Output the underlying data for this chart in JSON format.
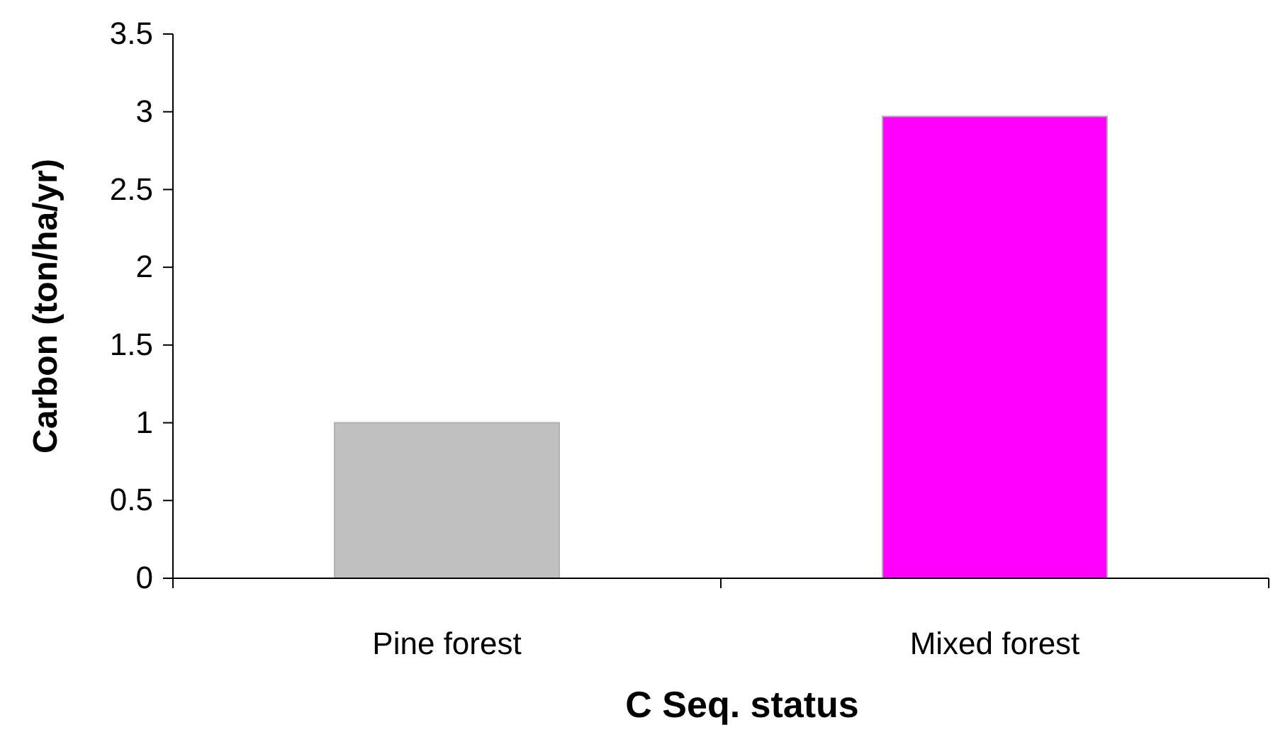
{
  "chart_data": {
    "type": "bar",
    "xlabel": "C Seq. status",
    "ylabel": "Carbon (ton/ha/yr)",
    "categories": [
      "Pine forest",
      "Mixed forest"
    ],
    "values": [
      1.0,
      2.97
    ],
    "colors": [
      "#c0c0c0",
      "#ff00ff"
    ],
    "ylim": [
      0,
      3.5
    ],
    "yticks": [
      0,
      0.5,
      1,
      1.5,
      2,
      2.5,
      3,
      3.5
    ],
    "grid": false
  }
}
